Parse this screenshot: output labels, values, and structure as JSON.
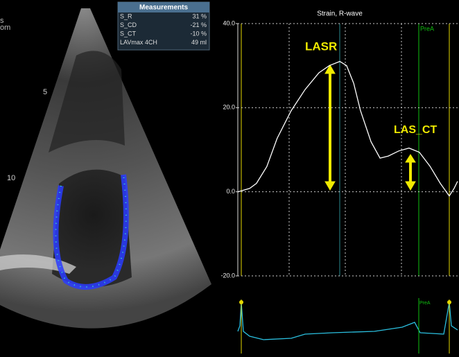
{
  "image_labels": {
    "left_top_1": "s",
    "left_top_2": "om",
    "depth_5": "5",
    "depth_10": "10"
  },
  "measurements": {
    "title": "Measurements",
    "rows": [
      [
        "S_R",
        "31 %"
      ],
      [
        "S_CD",
        "-21 %"
      ],
      [
        "S_CT",
        "-10 %"
      ],
      [
        "LAVmax 4CH",
        "49 ml"
      ]
    ]
  },
  "chart_data": {
    "type": "line",
    "title": "Strain, R-wave",
    "annotations": {
      "lasr": "LASR",
      "las_ct": "LAS_CT",
      "prea": "PreA",
      "prea_ecg": "PreA"
    },
    "x": [
      0,
      5.4,
      8.5,
      13.2,
      17.9,
      24.3,
      30.6,
      36.9,
      41.6,
      46.4,
      49.5,
      52.7,
      55.8,
      60.6,
      64.7,
      68.5,
      73.2,
      77.9,
      82.6,
      87.4,
      92.1,
      96.2,
      98.4,
      100
    ],
    "xlim": [
      0,
      100
    ],
    "series": [
      {
        "name": "Strain",
        "color": "#ffffff",
        "values": [
          0,
          0.8,
          2,
          6,
          12.7,
          19.3,
          24.3,
          28.3,
          30,
          31,
          30,
          25.8,
          19.3,
          11.9,
          8,
          8.5,
          9.7,
          10.4,
          9.4,
          6.1,
          2,
          -1,
          0.8,
          2.5
        ]
      }
    ],
    "ylim": [
      -20,
      40
    ],
    "yticks": [
      {
        "value": -20,
        "label": "-20.0"
      },
      {
        "value": 0,
        "label": "0.0"
      },
      {
        "value": 20,
        "label": "20.0"
      },
      {
        "value": 40,
        "label": "40.0"
      }
    ],
    "grid": true
  }
}
